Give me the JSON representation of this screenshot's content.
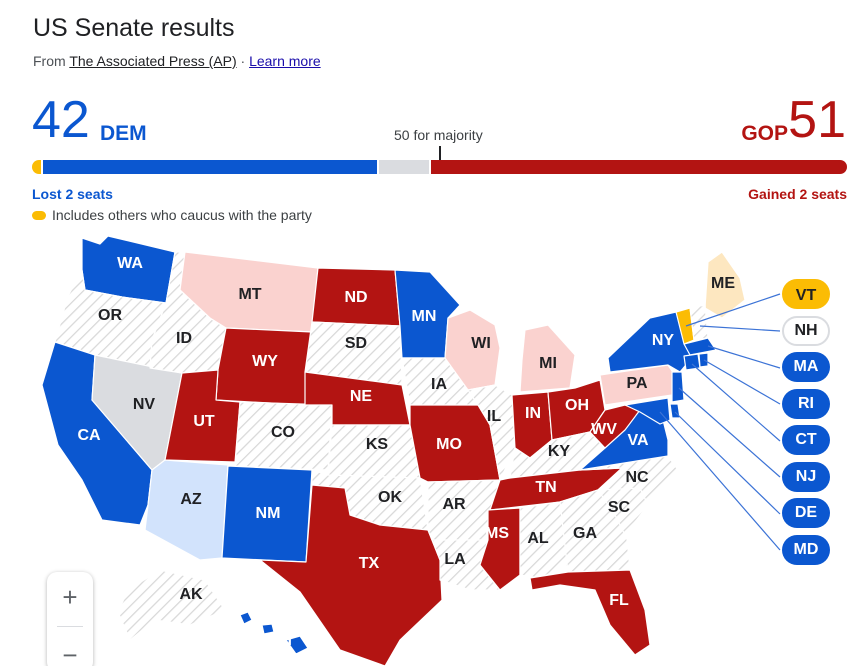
{
  "header": {
    "title": "US Senate results",
    "source_prefix": "From ",
    "source_name": "The Associated Press (AP)",
    "source_sep": " · ",
    "learn_more": "Learn more"
  },
  "tally": {
    "dem_count": "42",
    "dem_label": "DEM",
    "gop_count": "51",
    "gop_label": "GOP",
    "majority_label": "50 for majority",
    "dem_change": "Lost 2 seats",
    "gop_change": "Gained 2 seats",
    "legend_note": "Includes others who caucus with the party"
  },
  "colors": {
    "dem": "#0b57d0",
    "gop": "#b31412",
    "dem_light": "#d2e3fc",
    "gop_light": "#fad2cf",
    "independent": "#fbbc04",
    "independent_light": "#fde7c0",
    "uncalled": "#dadce0",
    "no_race": "#f1f3f4"
  },
  "map": {
    "states": [
      {
        "abbr": "WA",
        "status": "dem"
      },
      {
        "abbr": "OR",
        "status": "none"
      },
      {
        "abbr": "CA",
        "status": "dem"
      },
      {
        "abbr": "NV",
        "status": "uncalled"
      },
      {
        "abbr": "ID",
        "status": "none"
      },
      {
        "abbr": "MT",
        "status": "gop-light"
      },
      {
        "abbr": "WY",
        "status": "gop"
      },
      {
        "abbr": "UT",
        "status": "gop"
      },
      {
        "abbr": "AZ",
        "status": "dem-light"
      },
      {
        "abbr": "CO",
        "status": "none"
      },
      {
        "abbr": "NM",
        "status": "dem"
      },
      {
        "abbr": "ND",
        "status": "gop"
      },
      {
        "abbr": "SD",
        "status": "none"
      },
      {
        "abbr": "NE",
        "status": "gop"
      },
      {
        "abbr": "KS",
        "status": "none"
      },
      {
        "abbr": "OK",
        "status": "none"
      },
      {
        "abbr": "TX",
        "status": "gop"
      },
      {
        "abbr": "MN",
        "status": "dem"
      },
      {
        "abbr": "IA",
        "status": "none"
      },
      {
        "abbr": "MO",
        "status": "gop"
      },
      {
        "abbr": "AR",
        "status": "none"
      },
      {
        "abbr": "LA",
        "status": "none"
      },
      {
        "abbr": "WI",
        "status": "gop-light"
      },
      {
        "abbr": "IL",
        "status": "none"
      },
      {
        "abbr": "MI",
        "status": "gop-light"
      },
      {
        "abbr": "IN",
        "status": "gop"
      },
      {
        "abbr": "OH",
        "status": "gop"
      },
      {
        "abbr": "KY",
        "status": "none"
      },
      {
        "abbr": "TN",
        "status": "gop"
      },
      {
        "abbr": "MS",
        "status": "gop"
      },
      {
        "abbr": "AL",
        "status": "none"
      },
      {
        "abbr": "GA",
        "status": "none"
      },
      {
        "abbr": "FL",
        "status": "gop"
      },
      {
        "abbr": "SC",
        "status": "none"
      },
      {
        "abbr": "NC",
        "status": "none"
      },
      {
        "abbr": "VA",
        "status": "dem"
      },
      {
        "abbr": "WV",
        "status": "gop"
      },
      {
        "abbr": "PA",
        "status": "gop-light"
      },
      {
        "abbr": "NY",
        "status": "dem"
      },
      {
        "abbr": "ME",
        "status": "ind-light"
      },
      {
        "abbr": "AK",
        "status": "none"
      },
      {
        "abbr": "HI",
        "status": "dem"
      }
    ],
    "small_states": [
      "VT",
      "NH",
      "MA",
      "RI",
      "CT",
      "NJ",
      "DE",
      "MD"
    ],
    "zoom_in": "+",
    "zoom_out": "−"
  }
}
